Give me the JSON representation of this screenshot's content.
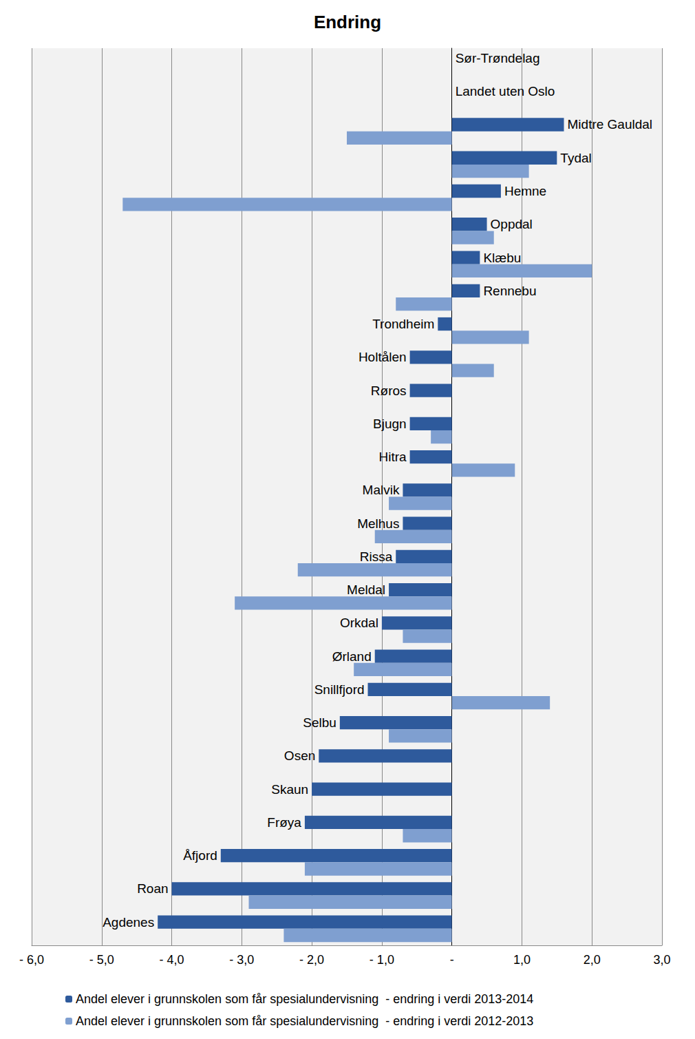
{
  "chart_data": {
    "type": "bar",
    "orientation": "horizontal",
    "title": "Endring",
    "categories": [
      "Sør-Trøndelag",
      "Landet uten Oslo",
      "Midtre Gauldal",
      "Tydal",
      "Hemne",
      "Oppdal",
      "Klæbu",
      "Rennebu",
      "Trondheim",
      "Holtålen",
      "Røros",
      "Bjugn",
      "Hitra",
      "Malvik",
      "Melhus",
      "Rissa",
      "Meldal",
      "Orkdal",
      "Ørland",
      "Snillfjord",
      "Selbu",
      "Osen",
      "Skaun",
      "Frøya",
      "Åfjord",
      "Roan",
      "Agdenes"
    ],
    "series": [
      {
        "name": "Andel elever i grunnskolen som får spesialundervisning  - endring i verdi 2013-2014",
        "color": "#2e5a9c",
        "values": [
          0,
          0,
          1.6,
          1.5,
          0.7,
          0.5,
          0.4,
          0.4,
          -0.2,
          -0.6,
          -0.6,
          -0.6,
          -0.6,
          -0.7,
          -0.7,
          -0.8,
          -0.9,
          -1.0,
          -1.1,
          -1.2,
          -1.6,
          -1.9,
          -2.0,
          -2.1,
          -3.3,
          -4.0,
          -4.2
        ]
      },
      {
        "name": "Andel elever i grunnskolen som får spesialundervisning  - endring i verdi 2012-2013",
        "color": "#7f9fd0",
        "values": [
          0,
          0,
          -1.5,
          1.1,
          -4.7,
          0.6,
          2.0,
          -0.8,
          1.1,
          0.6,
          0,
          -0.3,
          0.9,
          -0.9,
          -1.1,
          -2.2,
          -3.1,
          -0.7,
          -1.4,
          1.4,
          -0.9,
          0,
          0,
          -0.7,
          -2.1,
          -2.9,
          -2.4
        ]
      }
    ],
    "xlim": [
      -6,
      3
    ],
    "xticks": [
      {
        "value": -6,
        "label": "- 6,0"
      },
      {
        "value": -5,
        "label": "- 5,0"
      },
      {
        "value": -4,
        "label": "- 4,0"
      },
      {
        "value": -3,
        "label": "- 3,0"
      },
      {
        "value": -2,
        "label": "- 2,0"
      },
      {
        "value": -1,
        "label": "- 1,0"
      },
      {
        "value": 0,
        "label": "-"
      },
      {
        "value": 1,
        "label": "1,0"
      },
      {
        "value": 2,
        "label": "2,0"
      },
      {
        "value": 3,
        "label": "3,0"
      }
    ],
    "grid": true,
    "legend": "bottom"
  }
}
